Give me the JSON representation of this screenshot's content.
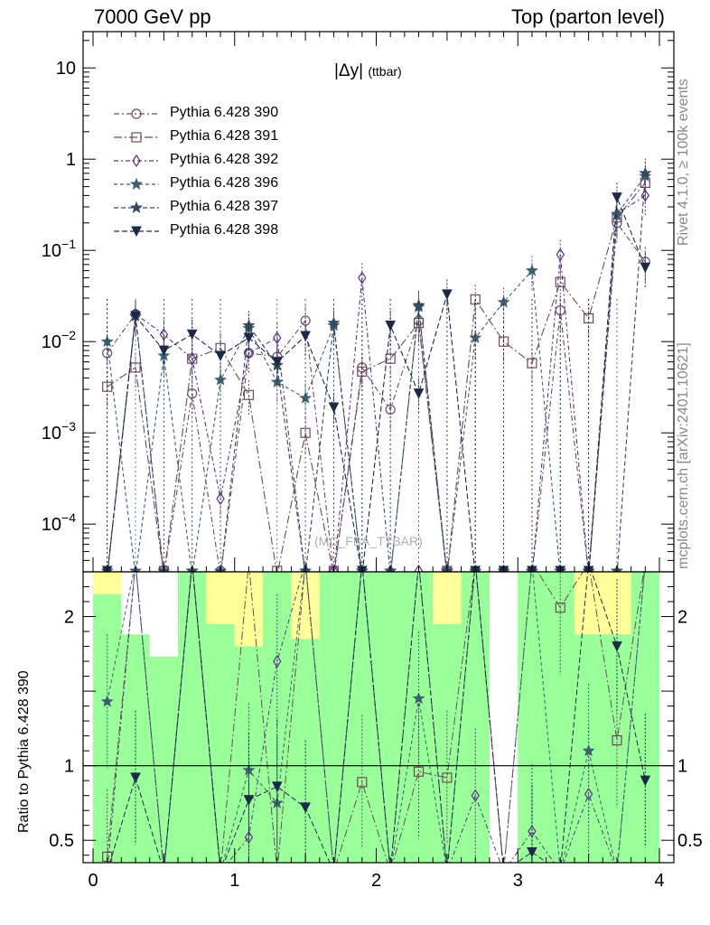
{
  "header": {
    "left": "7000 GeV pp",
    "right": "Top (parton level)"
  },
  "notes": {
    "rivet": "Rivet 4.1.0, ≥ 100k events",
    "mcplots": "mcplots.cern.ch [arXiv:2401.10621]",
    "watermark": "(MC_FBA_TTBAR)"
  },
  "plot_label": {
    "main": "|Δy|",
    "sub": "(ttbar)"
  },
  "chart_data": {
    "type": "line",
    "title": "|Δy| (ttbar)",
    "xlabel": "",
    "ylabel": "",
    "xlim": [
      0,
      4
    ],
    "ylim": [
      3e-05,
      25
    ],
    "yscale": "log",
    "ratio_ylabel": "Ratio to Pythia 6.428 390",
    "ratio_ylim": [
      0.35,
      2.3
    ],
    "x_ticks": [
      "0",
      "1",
      "2",
      "3",
      "4"
    ],
    "y_ticks": [
      {
        "value": 10,
        "base": "10",
        "exp": ""
      },
      {
        "value": 1,
        "base": "1",
        "exp": ""
      },
      {
        "value": 0.1,
        "base": "10",
        "exp": "−1"
      },
      {
        "value": 0.01,
        "base": "10",
        "exp": "−2"
      },
      {
        "value": 0.001,
        "base": "10",
        "exp": "−3"
      },
      {
        "value": 0.0001,
        "base": "10",
        "exp": "−4"
      }
    ],
    "ratio_ticks": [
      {
        "value": 2,
        "label": "2"
      },
      {
        "value": 1,
        "label": "1"
      },
      {
        "value": 0.5,
        "label": "0.5"
      }
    ],
    "x": [
      0.1,
      0.3,
      0.5,
      0.7,
      0.9,
      1.1,
      1.3,
      1.5,
      1.7,
      1.9,
      2.1,
      2.3,
      2.5,
      2.7,
      2.9,
      3.1,
      3.3,
      3.5,
      3.7,
      3.9
    ],
    "series": [
      {
        "name": "Pythia 6.428 390",
        "color": "#6e4a68",
        "marker": "circle",
        "dash": "6,3,2,3",
        "values": [
          0.0075,
          0.02,
          0,
          0.0027,
          0,
          0.0075,
          0.0068,
          0.017,
          0,
          0.0052,
          0.0018,
          0.017,
          0,
          0,
          0,
          0,
          0.022,
          0,
          0.2,
          0.075
        ]
      },
      {
        "name": "Pythia 6.428 391",
        "color": "#6e4a58",
        "marker": "square",
        "dash": "9,3,2,3",
        "values": [
          0.0032,
          0.0052,
          0,
          0.0065,
          0.0085,
          0.0026,
          0,
          0.001,
          0,
          0.0047,
          0.0065,
          0.016,
          0,
          0.029,
          0.01,
          0.0058,
          0.045,
          0.018,
          0.23,
          0.55
        ]
      },
      {
        "name": "Pythia 6.428 392",
        "color": "#58308a",
        "marker": "diamond",
        "dash": "5,3,2,3",
        "values": [
          0,
          0.02,
          0.012,
          0.0065,
          0.00019,
          0.0075,
          0.011,
          0,
          0,
          0.05,
          0,
          0,
          0,
          0,
          0,
          0,
          0.09,
          0,
          0.25,
          0.4
        ]
      },
      {
        "name": "Pythia 6.428 396",
        "color": "#3e5f72",
        "marker": "star",
        "dash": "4,3",
        "values": [
          0.01,
          0,
          0.007,
          0,
          0.0038,
          0.014,
          0.0036,
          0.0024,
          0.015,
          0,
          0,
          0.024,
          0,
          0.011,
          0.027,
          0.06,
          0,
          0,
          0.25,
          0.65
        ]
      },
      {
        "name": "Pythia 6.428 397",
        "color": "#344a5e",
        "marker": "star",
        "dash": "5,3",
        "values": [
          0,
          0.019,
          0,
          0,
          0,
          0.015,
          0.0055,
          0,
          0.016,
          0,
          0,
          0.025,
          0,
          0,
          0,
          0,
          0,
          0,
          0,
          0.7
        ]
      },
      {
        "name": "Pythia 6.428 398",
        "color": "#1c2a4a",
        "marker": "triangle-down",
        "dash": "6,3",
        "values": [
          0,
          0.019,
          0.008,
          0.012,
          0.007,
          0.011,
          0.006,
          0.0115,
          0.0019,
          0,
          0.015,
          0.0027,
          0.033,
          0,
          0,
          0,
          0,
          0,
          0.38,
          0.065
        ]
      }
    ],
    "ratios": [
      {
        "series": "Pythia 6.428 391",
        "values": [
          0.39,
          null,
          null,
          null,
          null,
          null,
          null,
          null,
          null,
          0.89,
          null,
          0.96,
          0.92,
          null,
          null,
          null,
          2.06,
          null,
          1.17,
          null
        ]
      },
      {
        "series": "Pythia 6.428 392",
        "values": [
          null,
          null,
          null,
          null,
          null,
          0.52,
          1.7,
          null,
          null,
          null,
          null,
          null,
          null,
          0.8,
          null,
          0.56,
          null,
          0.81,
          null,
          null
        ]
      },
      {
        "series": "Pythia 6.428 396",
        "values": [
          1.43,
          null,
          null,
          null,
          null,
          0.97,
          0.75,
          null,
          null,
          null,
          null,
          1.45,
          null,
          null,
          null,
          null,
          null,
          1.1,
          null,
          null
        ]
      },
      {
        "series": "Pythia 6.428 398",
        "values": [
          null,
          0.92,
          null,
          null,
          null,
          0.77,
          0.86,
          0.72,
          null,
          null,
          null,
          null,
          null,
          null,
          null,
          0.42,
          null,
          null,
          1.8,
          0.9
        ]
      }
    ],
    "ratio_bands": [
      {
        "x0": 0.0,
        "x1": 0.2,
        "yellow": [
          0.35,
          2.3
        ],
        "green": [
          0.35,
          2.15
        ]
      },
      {
        "x0": 0.2,
        "x1": 0.4,
        "yellow": [
          0.62,
          1.88
        ],
        "green": [
          0.35,
          1.88
        ]
      },
      {
        "x0": 0.4,
        "x1": 0.6,
        "yellow": [
          0.47,
          1.73
        ],
        "green": [
          0.35,
          1.73
        ]
      },
      {
        "x0": 0.6,
        "x1": 0.8,
        "yellow": [
          0.35,
          2.3
        ],
        "green": [
          0.35,
          2.3
        ]
      },
      {
        "x0": 0.8,
        "x1": 1.0,
        "yellow": [
          0.35,
          2.3
        ],
        "green": [
          0.35,
          1.95
        ]
      },
      {
        "x0": 1.0,
        "x1": 1.2,
        "yellow": [
          0.35,
          2.3
        ],
        "green": [
          0.35,
          1.8
        ]
      },
      {
        "x0": 1.2,
        "x1": 1.4,
        "yellow": [
          0.35,
          2.3
        ],
        "green": [
          0.35,
          2.3
        ]
      },
      {
        "x0": 1.4,
        "x1": 1.6,
        "yellow": [
          0.35,
          2.3
        ],
        "green": [
          0.35,
          1.85
        ]
      },
      {
        "x0": 1.6,
        "x1": 2.4,
        "yellow": [
          0.35,
          2.3
        ],
        "green": [
          0.35,
          2.3
        ]
      },
      {
        "x0": 2.4,
        "x1": 2.6,
        "yellow": [
          0.35,
          2.3
        ],
        "green": [
          0.35,
          1.95
        ]
      },
      {
        "x0": 2.6,
        "x1": 2.8,
        "yellow": [
          0.35,
          2.3
        ],
        "green": [
          0.35,
          2.3
        ]
      },
      {
        "x0": 3.0,
        "x1": 3.4,
        "yellow": [
          0.35,
          2.3
        ],
        "green": [
          0.35,
          2.3
        ]
      },
      {
        "x0": 3.4,
        "x1": 3.8,
        "yellow": [
          0.35,
          2.3
        ],
        "green": [
          0.35,
          1.88
        ]
      },
      {
        "x0": 3.8,
        "x1": 4.0,
        "yellow": [
          0.35,
          2.3
        ],
        "green": [
          0.35,
          2.3
        ]
      }
    ]
  }
}
